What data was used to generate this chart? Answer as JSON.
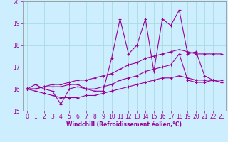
{
  "xlabel": "Windchill (Refroidissement éolien,°C)",
  "xlim": [
    -0.5,
    23.5
  ],
  "ylim": [
    15,
    20
  ],
  "yticks": [
    15,
    16,
    17,
    18,
    19,
    20
  ],
  "xticks": [
    0,
    1,
    2,
    3,
    4,
    5,
    6,
    7,
    8,
    9,
    10,
    11,
    12,
    13,
    14,
    15,
    16,
    17,
    18,
    19,
    20,
    21,
    22,
    23
  ],
  "bg_color": "#cceeff",
  "grid_color": "#aadddd",
  "line_color": "#990099",
  "lines": [
    [
      16.0,
      16.2,
      16.0,
      15.9,
      15.3,
      16.0,
      16.1,
      16.0,
      15.9,
      15.9,
      17.4,
      19.2,
      17.6,
      18.0,
      19.2,
      16.8,
      19.2,
      18.9,
      19.6,
      17.6,
      17.7,
      16.6,
      16.4,
      16.3
    ],
    [
      16.0,
      16.0,
      16.1,
      16.1,
      16.1,
      16.2,
      16.2,
      16.0,
      16.0,
      16.1,
      16.2,
      16.4,
      16.5,
      16.6,
      16.8,
      16.9,
      17.0,
      17.1,
      17.6,
      16.4,
      16.3,
      16.3,
      16.4,
      16.3
    ],
    [
      16.0,
      16.0,
      16.1,
      16.2,
      16.2,
      16.3,
      16.4,
      16.4,
      16.5,
      16.6,
      16.7,
      16.9,
      17.1,
      17.2,
      17.4,
      17.5,
      17.6,
      17.7,
      17.8,
      17.7,
      17.6,
      17.6,
      17.6,
      17.6
    ],
    [
      16.0,
      15.9,
      15.8,
      15.7,
      15.6,
      15.6,
      15.6,
      15.7,
      15.7,
      15.8,
      15.9,
      16.0,
      16.1,
      16.2,
      16.3,
      16.4,
      16.5,
      16.5,
      16.6,
      16.5,
      16.4,
      16.4,
      16.4,
      16.4
    ]
  ],
  "tick_fontsize": 5.5,
  "xlabel_fontsize": 5.5,
  "xlabel_fontweight": "bold"
}
